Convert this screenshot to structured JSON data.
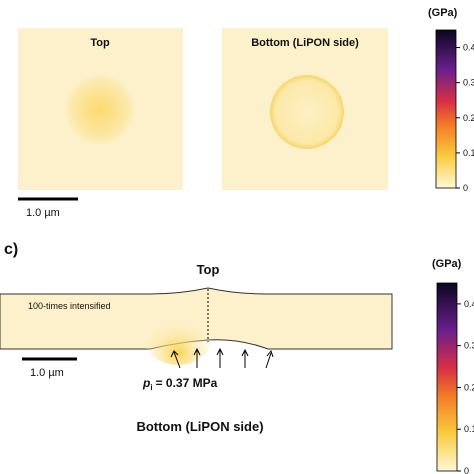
{
  "panel_b": {
    "left_title": "Top",
    "right_title": "Bottom (LiPON side)",
    "scale_bar": "1.0 µm",
    "colorbar": {
      "label": "(GPa)",
      "lim": [
        0,
        0.45
      ],
      "ticks": [
        0,
        0.1,
        0.2,
        0.3,
        0.4
      ]
    }
  },
  "panel_c": {
    "label": "c)",
    "top_label": "Top",
    "note": "100-times intensified",
    "scale_bar": "1.0 µm",
    "pressure": {
      "symbol": "p",
      "subscript": "i",
      "text": "= 0.37 MPa"
    },
    "bottom_label": "Bottom (LiPON side)",
    "colorbar": {
      "label": "(GPa)",
      "lim": [
        0,
        0.45
      ],
      "ticks": [
        0,
        0.1,
        0.2,
        0.3,
        0.4
      ]
    }
  }
}
